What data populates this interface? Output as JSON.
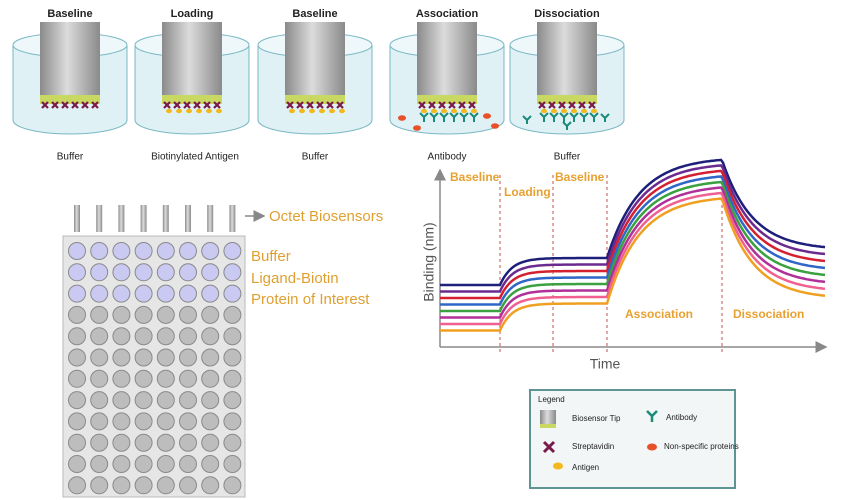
{
  "steps": [
    {
      "title": "Baseline",
      "caption": "Buffer"
    },
    {
      "title": "Loading",
      "caption": "Biotinylated Antigen"
    },
    {
      "title": "Baseline",
      "caption": "Buffer"
    },
    {
      "title": "Association",
      "caption": "Antibody"
    },
    {
      "title": "Dissociation",
      "caption": "Buffer"
    }
  ],
  "plate": {
    "biosensors_label": "Octet Biosensors",
    "row_labels": [
      "Buffer",
      "Ligand-Biotin",
      "Protein of Interest"
    ]
  },
  "graph": {
    "y_label": "Binding (nm)",
    "x_label": "Time",
    "phases": [
      "Baseline",
      "Loading",
      "Baseline",
      "Association",
      "Dissociation"
    ]
  },
  "legend": {
    "title": "Legend",
    "items": [
      "Biosensor Tip",
      "Antibody",
      "Streptavidin",
      "Non-specific proteins",
      "Antigen"
    ]
  }
}
